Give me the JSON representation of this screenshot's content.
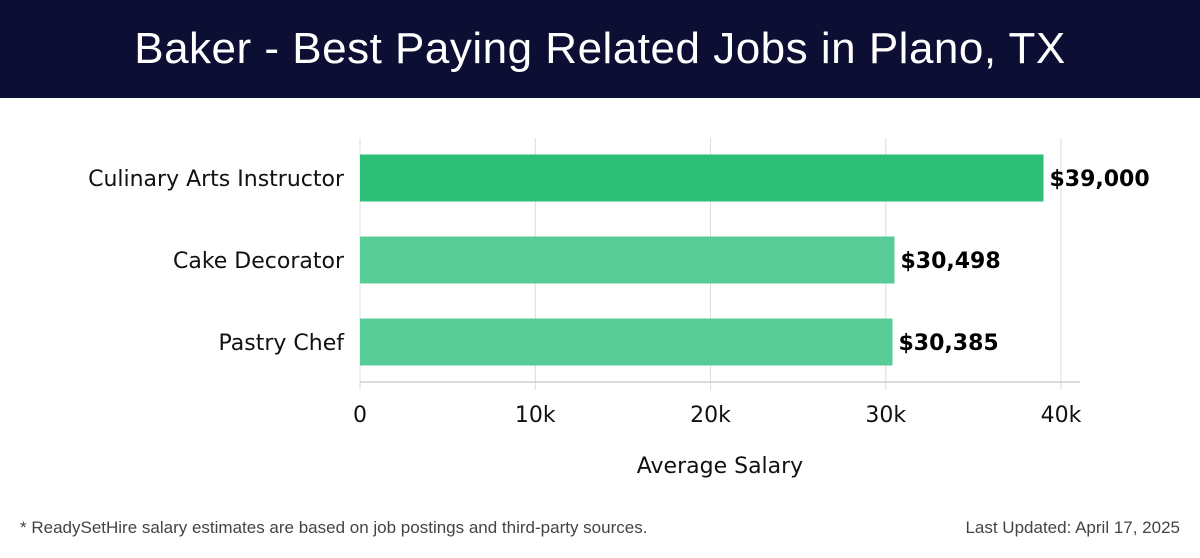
{
  "chart_data": {
    "type": "bar",
    "orientation": "horizontal",
    "title": "Baker - Best Paying Related Jobs in Plano, TX",
    "categories": [
      "Culinary Arts Instructor",
      "Cake Decorator",
      "Pastry Chef"
    ],
    "values": [
      39000,
      30498,
      30385
    ],
    "value_labels": [
      "$39,000",
      "$30,498",
      "$30,385"
    ],
    "xlabel": "Average Salary",
    "ylabel": "",
    "xlim": [
      0,
      40000
    ],
    "xticks": [
      0,
      10000,
      20000,
      30000,
      40000
    ],
    "xtick_labels": [
      "0",
      "10k",
      "20k",
      "30k",
      "40k"
    ],
    "grid": true,
    "colors": [
      "#2dbf78",
      "#57cc96",
      "#57cc96"
    ]
  },
  "footer": {
    "note": "* ReadySetHire salary estimates are based on job postings and third-party sources.",
    "updated": "Last Updated: April 17, 2025"
  }
}
